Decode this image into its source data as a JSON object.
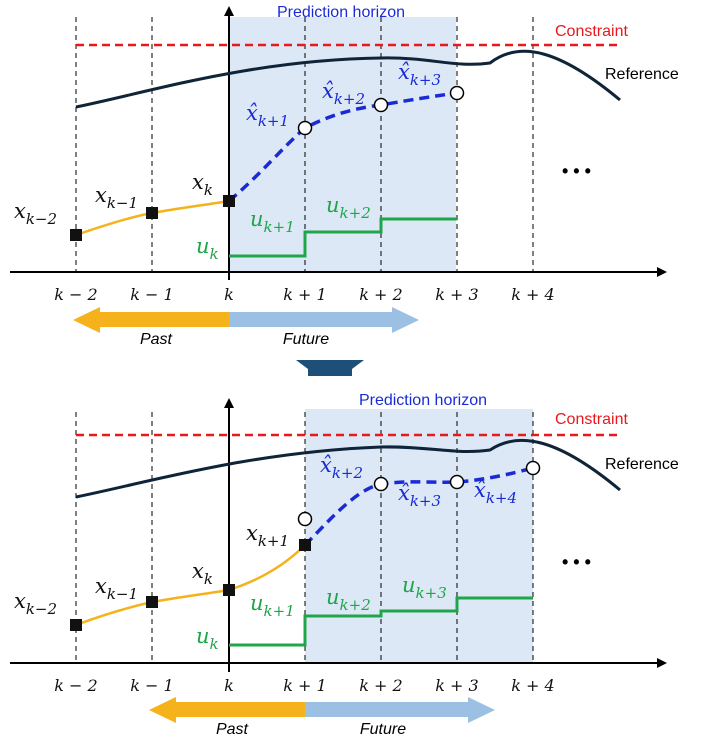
{
  "colors": {
    "horizon_fill": "#dce8f5",
    "constraint": "#e8191d",
    "reference": "#0f2438",
    "prediction": "#1a2bd6",
    "past_state": "#f5b21a",
    "input": "#1fa64a",
    "past_arrow": "#f5b21a",
    "future_arrow": "#9cc0e3",
    "transition_arrow": "#1e4f78",
    "horizon_label": "#1a2bd6",
    "axis": "#000000"
  },
  "panels": [
    {
      "horizon_label": "Prediction horizon",
      "constraint_label": "Constraint",
      "reference_label": "Reference",
      "ellipsis": "• • •",
      "ticks": [
        "k − 2",
        "k − 1",
        "k",
        "k + 1",
        "k + 2",
        "k + 3",
        "k + 4"
      ],
      "measured_states": [
        {
          "base": "x",
          "sub": "k−2"
        },
        {
          "base": "x",
          "sub": "k−1"
        },
        {
          "base": "x",
          "sub": "k"
        }
      ],
      "predicted_states": [
        {
          "base": "x̂",
          "sub": "k+1"
        },
        {
          "base": "x̂",
          "sub": "k+2"
        },
        {
          "base": "x̂",
          "sub": "k+3"
        }
      ],
      "inputs": [
        {
          "base": "u",
          "sub": "k"
        },
        {
          "base": "u",
          "sub": "k+1"
        },
        {
          "base": "u",
          "sub": "k+2"
        }
      ],
      "past_label": "Past",
      "future_label": "Future"
    },
    {
      "horizon_label": "Prediction horizon",
      "constraint_label": "Constraint",
      "reference_label": "Reference",
      "ellipsis": "• • •",
      "ticks": [
        "k − 2",
        "k − 1",
        "k",
        "k + 1",
        "k + 2",
        "k + 3",
        "k + 4"
      ],
      "measured_states": [
        {
          "base": "x",
          "sub": "k−2"
        },
        {
          "base": "x",
          "sub": "k−1"
        },
        {
          "base": "x",
          "sub": "k"
        },
        {
          "base": "x",
          "sub": "k+1"
        }
      ],
      "predicted_states": [
        {
          "base": "x̂",
          "sub": "k+2"
        },
        {
          "base": "x̂",
          "sub": "k+3"
        },
        {
          "base": "x̂",
          "sub": "k+4"
        }
      ],
      "inputs": [
        {
          "base": "u",
          "sub": "k"
        },
        {
          "base": "u",
          "sub": "k+1"
        },
        {
          "base": "u",
          "sub": "k+2"
        },
        {
          "base": "u",
          "sub": "k+3"
        }
      ],
      "past_label": "Past",
      "future_label": "Future"
    }
  ]
}
